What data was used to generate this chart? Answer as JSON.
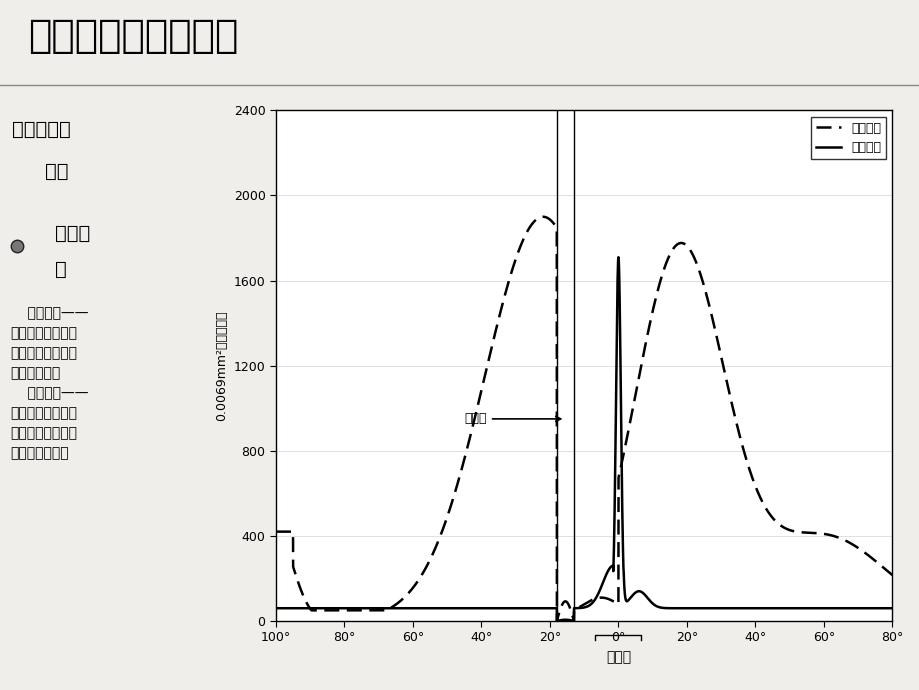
{
  "title": "第一节、眼睛与视觉",
  "section_heading": "一、眼睛的\n   构造",
  "bullet_label": "感光细\n胞",
  "body_text": "    锥状细胞——\n只在明亮环境下起\n作用，能区分物体\n细部及颜色；\n    杆状细胞——\n只在黑暗环境下起\n作用，不能区分物\n体细部及颜色。",
  "ylabel": "0.0069mm²的细胞个数",
  "xlabel_center": "中心窝",
  "legend_rod": "杆体细胞",
  "legend_cone": "锥体细胞",
  "blind_spot_label": "盲点区",
  "ylim": [
    0,
    2400
  ],
  "yticks": [
    0,
    400,
    800,
    1200,
    1600,
    2000,
    2400
  ],
  "xtick_pos": [
    -100,
    -80,
    -60,
    -40,
    -20,
    0,
    20,
    40,
    60,
    80
  ],
  "xtick_labels": [
    "100°",
    "80°",
    "60°",
    "40°",
    "20°",
    "0°",
    "20°",
    "40°",
    "60°",
    "80°"
  ],
  "bg_color": "#f0eeeb"
}
